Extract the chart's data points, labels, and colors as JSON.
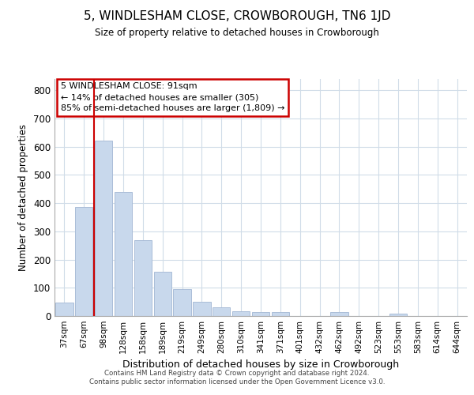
{
  "title": "5, WINDLESHAM CLOSE, CROWBOROUGH, TN6 1JD",
  "subtitle": "Size of property relative to detached houses in Crowborough",
  "xlabel": "Distribution of detached houses by size in Crowborough",
  "ylabel": "Number of detached properties",
  "bar_labels": [
    "37sqm",
    "67sqm",
    "98sqm",
    "128sqm",
    "158sqm",
    "189sqm",
    "219sqm",
    "249sqm",
    "280sqm",
    "310sqm",
    "341sqm",
    "371sqm",
    "401sqm",
    "432sqm",
    "462sqm",
    "492sqm",
    "523sqm",
    "553sqm",
    "583sqm",
    "614sqm",
    "644sqm"
  ],
  "bar_values": [
    47,
    387,
    622,
    440,
    270,
    157,
    95,
    50,
    30,
    18,
    13,
    13,
    0,
    0,
    13,
    0,
    0,
    8,
    0,
    0,
    0
  ],
  "bar_color": "#c8d8ec",
  "bar_edge_color": "#aabdd8",
  "ylim": [
    0,
    840
  ],
  "yticks": [
    0,
    100,
    200,
    300,
    400,
    500,
    600,
    700,
    800
  ],
  "vline_x": 1.5,
  "vline_color": "#cc0000",
  "annotation_text": "5 WINDLESHAM CLOSE: 91sqm\n← 14% of detached houses are smaller (305)\n85% of semi-detached houses are larger (1,809) →",
  "annotation_box_color": "#cc0000",
  "footer": "Contains HM Land Registry data © Crown copyright and database right 2024.\nContains public sector information licensed under the Open Government Licence v3.0.",
  "bg_color": "#ffffff",
  "grid_color": "#d0dce8"
}
